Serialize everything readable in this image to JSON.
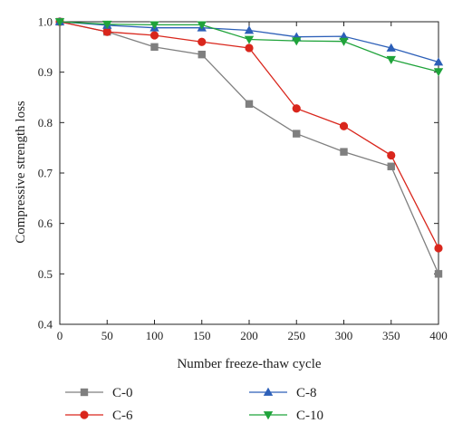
{
  "chart_data": {
    "type": "line",
    "xlabel": "Number freeze-thaw cycle",
    "ylabel": "Compressive strength loss",
    "xlim": [
      0,
      400
    ],
    "ylim": [
      0.4,
      1.0
    ],
    "x_ticks": [
      "0",
      "50",
      "100",
      "150",
      "200",
      "250",
      "300",
      "350",
      "400"
    ],
    "y_ticks": [
      "0.4",
      "0.5",
      "0.6",
      "0.7",
      "0.8",
      "0.9",
      "1.0"
    ],
    "x": [
      0,
      50,
      100,
      150,
      200,
      250,
      300,
      350,
      400
    ],
    "grid": false,
    "legend_position": "bottom",
    "series": [
      {
        "name": "C-0",
        "color": "#7f7f7f",
        "marker": "square",
        "values": [
          1.0,
          0.98,
          0.95,
          0.935,
          0.837,
          0.778,
          0.742,
          0.713,
          0.5
        ]
      },
      {
        "name": "C-6",
        "color": "#d9261c",
        "marker": "circle",
        "values": [
          1.0,
          0.98,
          0.973,
          0.96,
          0.948,
          0.828,
          0.793,
          0.735,
          0.551
        ]
      },
      {
        "name": "C-8",
        "color": "#2c5fb8",
        "marker": "triangle-up",
        "values": [
          1.0,
          0.993,
          0.988,
          0.988,
          0.983,
          0.97,
          0.971,
          0.948,
          0.92
        ]
      },
      {
        "name": "C-10",
        "color": "#1fa33a",
        "marker": "triangle-down",
        "values": [
          1.0,
          0.995,
          0.994,
          0.994,
          0.965,
          0.962,
          0.961,
          0.925,
          0.901
        ]
      }
    ]
  }
}
